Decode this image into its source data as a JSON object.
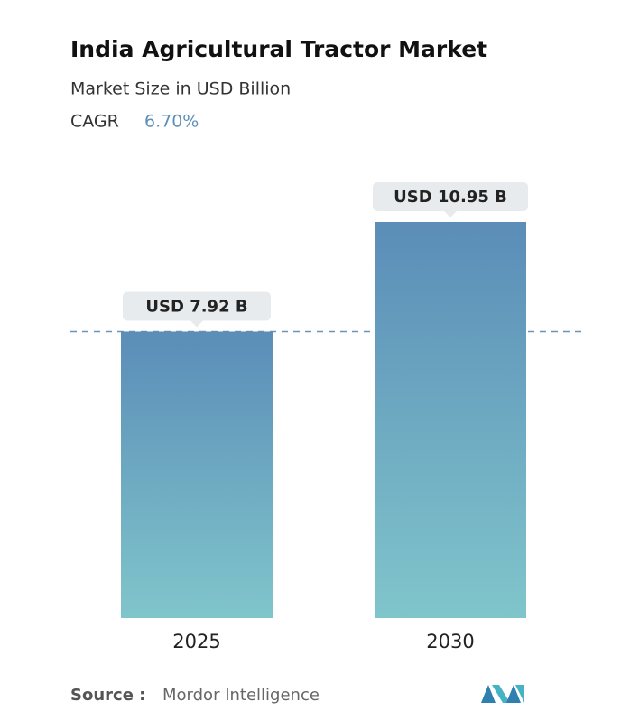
{
  "chart_data": {
    "type": "bar",
    "title": "India Agricultural Tractor Market",
    "subtitle": "Market Size in USD Billion",
    "cagr_label": "CAGR",
    "cagr": "6.70%",
    "categories": [
      "2025",
      "2030"
    ],
    "values": [
      7.92,
      10.95
    ],
    "value_labels": [
      "USD 7.92 B",
      "USD 10.95 B"
    ],
    "gradient": [
      "#5b8db8",
      "#80c5cb"
    ],
    "source_label": "Source :",
    "source": "Mordor Intelligence"
  }
}
